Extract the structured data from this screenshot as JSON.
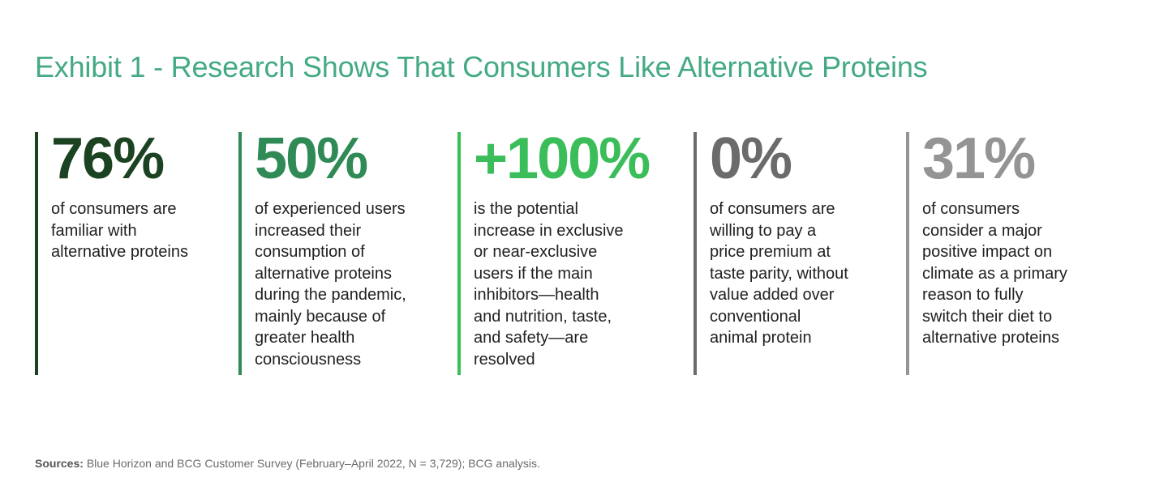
{
  "page": {
    "title": "Exhibit 1 - Research Shows That Consumers Like Alternative Proteins",
    "title_color": "#44AA83",
    "background_color": "#FFFFFF"
  },
  "stats": [
    {
      "value": "76%",
      "color": "#1B4221",
      "description": "of consumers are\nfamiliar with\nalternative proteins"
    },
    {
      "value": "50%",
      "color": "#2F8A56",
      "description": "of experienced users\nincreased their\nconsumption of\nalternative proteins\nduring the pandemic,\nmainly because of\ngreater health\nconsciousness"
    },
    {
      "value": "+100%",
      "color": "#3BBE5A",
      "description": "is the potential\nincrease in exclusive\nor near-exclusive\nusers if the main\ninhibitors—health\nand nutrition, taste,\nand safety—are\nresolved"
    },
    {
      "value": "0%",
      "color": "#6B6B6B",
      "description": "of consumers are\nwilling to pay a\nprice premium at\ntaste parity, without\nvalue added over\nconventional\nanimal protein"
    },
    {
      "value": "31%",
      "color": "#949494",
      "description": "of consumers\nconsider a major\npositive impact on\nclimate as a primary\nreason to fully\nswitch their diet to\nalternative proteins"
    }
  ],
  "footer": {
    "sources_label": "Sources:",
    "sources_text": "Blue Horizon and BCG Customer Survey (February–April 2022, N = 3,729); BCG analysis."
  },
  "chart_data": {
    "type": "table",
    "title": "Exhibit 1 - Research Shows That Consumers Like Alternative Proteins",
    "value_labels": [
      "76%",
      "50%",
      "+100%",
      "0%",
      "31%"
    ],
    "values": [
      76,
      50,
      100,
      0,
      31
    ],
    "categories": [
      "of consumers are familiar with alternative proteins",
      "of experienced users increased their consumption of alternative proteins during the pandemic, mainly because of greater health consciousness",
      "is the potential increase in exclusive or near-exclusive users if the main inhibitors—health and nutrition, taste, and safety—are resolved",
      "of consumers are willing to pay a price premium at taste parity, without value added over conventional animal protein",
      "of consumers consider a major positive impact on climate as a primary reason to fully switch their diet to alternative proteins"
    ],
    "series_colors": [
      "#1B4221",
      "#2F8A56",
      "#3BBE5A",
      "#6B6B6B",
      "#949494"
    ],
    "source": "Blue Horizon and BCG Customer Survey (February–April 2022, N = 3,729); BCG analysis.",
    "legend": false,
    "grid": false
  }
}
